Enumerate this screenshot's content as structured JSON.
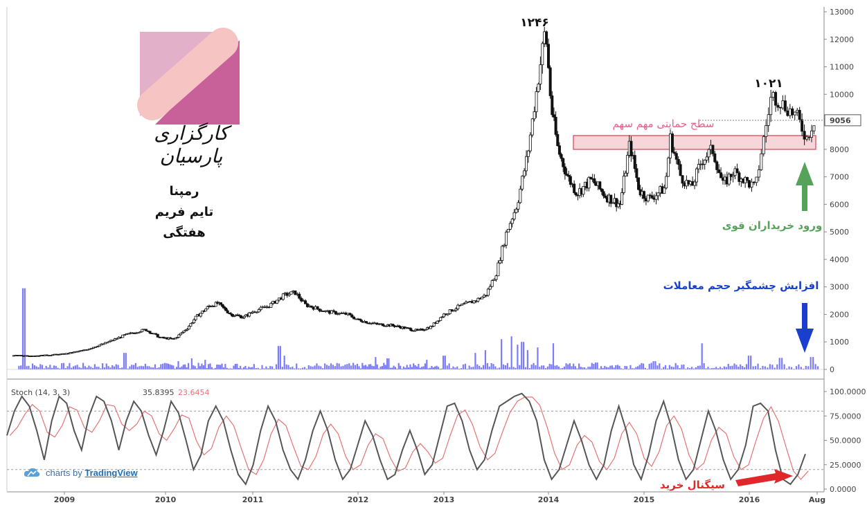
{
  "chart_data": [
    {
      "type": "candlestick",
      "title": "رمپنا",
      "subtitle": "تایم فریم هفتگی",
      "x_labels": [
        "2009",
        "2010",
        "2011",
        "2012",
        "2013",
        "2014",
        "2015",
        "2016",
        "Aug"
      ],
      "ylim": [
        0,
        13000
      ],
      "y_ticks": [
        0,
        1000,
        2000,
        3000,
        4000,
        5000,
        6000,
        7000,
        8000,
        9000,
        10000,
        11000,
        12000,
        13000
      ],
      "last_price": 9056,
      "price_path": [
        [
          2008.5,
          500
        ],
        [
          2008.75,
          500
        ],
        [
          2009.0,
          560
        ],
        [
          2009.2,
          700
        ],
        [
          2009.4,
          950
        ],
        [
          2009.6,
          1250
        ],
        [
          2009.8,
          1450
        ],
        [
          2009.95,
          1150
        ],
        [
          2010.1,
          1100
        ],
        [
          2010.25,
          1500
        ],
        [
          2010.35,
          1900
        ],
        [
          2010.5,
          2300
        ],
        [
          2010.6,
          2400
        ],
        [
          2010.75,
          2000
        ],
        [
          2010.9,
          1900
        ],
        [
          2011.0,
          2100
        ],
        [
          2011.15,
          2300
        ],
        [
          2011.3,
          2700
        ],
        [
          2011.4,
          2800
        ],
        [
          2011.5,
          2350
        ],
        [
          2011.7,
          2100
        ],
        [
          2011.9,
          2000
        ],
        [
          2012.0,
          1800
        ],
        [
          2012.2,
          1650
        ],
        [
          2012.4,
          1600
        ],
        [
          2012.55,
          1500
        ],
        [
          2012.7,
          1400
        ],
        [
          2012.85,
          1550
        ],
        [
          2013.0,
          2000
        ],
        [
          2013.15,
          2300
        ],
        [
          2013.3,
          2500
        ],
        [
          2013.4,
          2700
        ],
        [
          2013.5,
          3500
        ],
        [
          2013.6,
          5000
        ],
        [
          2013.7,
          6000
        ],
        [
          2013.8,
          7800
        ],
        [
          2013.9,
          10500
        ],
        [
          2013.97,
          12400
        ],
        [
          2014.03,
          9500
        ],
        [
          2014.1,
          8000
        ],
        [
          2014.2,
          7000
        ],
        [
          2014.3,
          6400
        ],
        [
          2014.45,
          6900
        ],
        [
          2014.6,
          6300
        ],
        [
          2014.75,
          6000
        ],
        [
          2014.85,
          8200
        ],
        [
          2014.95,
          6500
        ],
        [
          2015.05,
          6200
        ],
        [
          2015.2,
          6600
        ],
        [
          2015.25,
          8400
        ],
        [
          2015.35,
          7000
        ],
        [
          2015.45,
          6600
        ],
        [
          2015.55,
          7600
        ],
        [
          2015.65,
          8000
        ],
        [
          2015.75,
          6700
        ],
        [
          2015.85,
          7200
        ],
        [
          2015.95,
          6900
        ],
        [
          2016.05,
          6600
        ],
        [
          2016.1,
          8000
        ],
        [
          2016.18,
          10000
        ],
        [
          2016.28,
          9600
        ],
        [
          2016.38,
          9200
        ],
        [
          2016.46,
          8400
        ],
        [
          2016.52,
          9056
        ]
      ],
      "volume_spikes": [
        [
          2008.6,
          2950
        ],
        [
          2009.6,
          600
        ],
        [
          2010.15,
          300
        ],
        [
          2010.3,
          400
        ],
        [
          2010.45,
          350
        ],
        [
          2011.25,
          850
        ],
        [
          2011.3,
          500
        ],
        [
          2012.2,
          450
        ],
        [
          2012.35,
          400
        ],
        [
          2012.8,
          350
        ],
        [
          2013.0,
          500
        ],
        [
          2013.3,
          600
        ],
        [
          2013.4,
          700
        ],
        [
          2013.55,
          1100
        ],
        [
          2013.65,
          1200
        ],
        [
          2013.7,
          900
        ],
        [
          2013.75,
          1000
        ],
        [
          2013.8,
          700
        ],
        [
          2013.9,
          800
        ],
        [
          2014.05,
          950
        ],
        [
          2014.5,
          250
        ],
        [
          2015.1,
          300
        ],
        [
          2015.55,
          950
        ],
        [
          2016.0,
          500
        ],
        [
          2016.25,
          420
        ],
        [
          2016.5,
          450
        ]
      ],
      "support_zone": [
        8000,
        8500
      ],
      "annotations": {
        "peak1": "۱۲۴۶",
        "peak2": "۱۰۲۱",
        "support": "سطح حمایتی مهم سهم",
        "buyers": "ورود خریداران قوی",
        "volume": "افزایش چشمگیر حجم معاملات",
        "signal": "سیگنال خرید"
      },
      "colors": {
        "candles": "#111111",
        "volume": "#7b7bff",
        "support_fill": "#f7d6d9",
        "support_line": "#e06070",
        "green": "#55a35a",
        "blue": "#1a3fcf",
        "red": "#e0282a",
        "pink_text": "#f05a8a"
      }
    },
    {
      "type": "line",
      "title": "Stoch (14, 3, 3)",
      "k_value": "35.8395",
      "d_value": "23.6454",
      "ylim": [
        0,
        100
      ],
      "y_tick_labels": [
        "100.0000",
        "75.0000",
        "50.0000",
        "25.0000",
        "0.0000"
      ],
      "y_ticks": [
        100,
        75,
        50,
        25,
        0
      ],
      "levels": [
        80,
        20
      ],
      "k_series": [
        55,
        80,
        95,
        85,
        60,
        30,
        70,
        95,
        88,
        60,
        40,
        75,
        95,
        90,
        70,
        40,
        70,
        90,
        80,
        55,
        35,
        60,
        90,
        78,
        50,
        20,
        35,
        70,
        85,
        70,
        40,
        15,
        5,
        25,
        60,
        85,
        70,
        40,
        20,
        10,
        30,
        60,
        80,
        60,
        30,
        10,
        20,
        45,
        70,
        55,
        30,
        10,
        15,
        40,
        60,
        40,
        15,
        25,
        55,
        85,
        88,
        70,
        40,
        20,
        30,
        60,
        85,
        90,
        95,
        98,
        90,
        70,
        30,
        10,
        20,
        45,
        70,
        50,
        25,
        10,
        25,
        60,
        85,
        60,
        25,
        10,
        35,
        70,
        90,
        65,
        30,
        10,
        20,
        50,
        80,
        60,
        30,
        10,
        20,
        45,
        85,
        88,
        80,
        40,
        10,
        5,
        15,
        36
      ],
      "colors": {
        "k": "#555555",
        "d": "#e57373",
        "levels": "#999999"
      }
    }
  ],
  "branding": {
    "logo_text": "کارگزاری پارسیان",
    "tradingview_prefix": "charts by",
    "tradingview_name": "TradingView"
  }
}
